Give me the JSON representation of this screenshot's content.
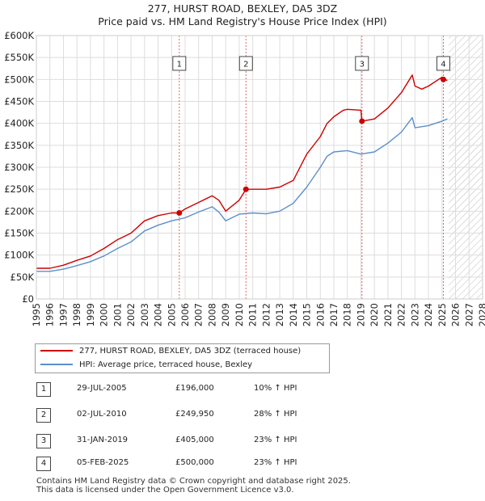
{
  "title": {
    "line1": "277, HURST ROAD, BEXLEY, DA5 3DZ",
    "line2": "Price paid vs. HM Land Registry's House Price Index (HPI)"
  },
  "colors": {
    "price_line": "#cc0000",
    "hpi_line": "#5b8fc9",
    "marker_line": "#e06666",
    "grid": "#dddddd",
    "future_hatch": "#bbbbbb"
  },
  "chart_data": {
    "type": "line",
    "title": "277, HURST ROAD, BEXLEY, DA5 3DZ — Price paid vs. HM Land Registry's House Price Index (HPI)",
    "xlim": [
      1995,
      2028
    ],
    "ylim": [
      0,
      600000
    ],
    "grid": true,
    "x_ticks": [
      "1995",
      "1996",
      "1997",
      "1998",
      "1999",
      "2000",
      "2001",
      "2002",
      "2003",
      "2004",
      "2005",
      "2006",
      "2007",
      "2008",
      "2009",
      "2010",
      "2011",
      "2012",
      "2013",
      "2014",
      "2015",
      "2016",
      "2017",
      "2018",
      "2019",
      "2020",
      "2021",
      "2022",
      "2023",
      "2024",
      "2025",
      "2026",
      "2027",
      "2028"
    ],
    "y_ticks": [
      {
        "value": 0,
        "label": "£0"
      },
      {
        "value": 50000,
        "label": "£50K"
      },
      {
        "value": 100000,
        "label": "£100K"
      },
      {
        "value": 150000,
        "label": "£150K"
      },
      {
        "value": 200000,
        "label": "£200K"
      },
      {
        "value": 250000,
        "label": "£250K"
      },
      {
        "value": 300000,
        "label": "£300K"
      },
      {
        "value": 350000,
        "label": "£350K"
      },
      {
        "value": 400000,
        "label": "£400K"
      },
      {
        "value": 450000,
        "label": "£450K"
      },
      {
        "value": 500000,
        "label": "£500K"
      },
      {
        "value": 550000,
        "label": "£550K"
      },
      {
        "value": 600000,
        "label": "£600K"
      }
    ],
    "future_from": 2025.5,
    "series": [
      {
        "name": "277, HURST ROAD, BEXLEY, DA5 3DZ (terraced house)",
        "color": "#cc0000",
        "x": [
          1995,
          1996,
          1997,
          1998,
          1999,
          2000,
          2001,
          2002,
          2003,
          2004,
          2005,
          2005.57,
          2006,
          2007,
          2008,
          2008.5,
          2009,
          2010,
          2010.5,
          2011,
          2012,
          2013,
          2014,
          2015,
          2016,
          2016.5,
          2017,
          2017.7,
          2018,
          2019,
          2019.08,
          2020,
          2021,
          2022,
          2022.8,
          2023,
          2023.5,
          2024,
          2025,
          2025.1,
          2025.4
        ],
        "y": [
          70000,
          70000,
          77000,
          88000,
          98000,
          115000,
          135000,
          150000,
          178000,
          190000,
          196000,
          196000,
          205000,
          220000,
          235000,
          225000,
          200000,
          225000,
          249950,
          250000,
          250000,
          255000,
          270000,
          330000,
          370000,
          400000,
          415000,
          430000,
          432000,
          430000,
          405000,
          410000,
          435000,
          470000,
          510000,
          485000,
          478000,
          485000,
          505000,
          500000,
          498000
        ]
      },
      {
        "name": "HPI: Average price, terraced house, Bexley",
        "color": "#5b8fc9",
        "x": [
          1995,
          1996,
          1997,
          1998,
          1999,
          2000,
          2001,
          2002,
          2003,
          2004,
          2005,
          2006,
          2007,
          2008,
          2008.5,
          2009,
          2010,
          2011,
          2012,
          2013,
          2014,
          2015,
          2016,
          2016.5,
          2017,
          2018,
          2019,
          2020,
          2021,
          2022,
          2022.8,
          2023,
          2024,
          2025,
          2025.4
        ],
        "y": [
          63000,
          63000,
          68000,
          76000,
          85000,
          98000,
          115000,
          130000,
          155000,
          168000,
          178000,
          185000,
          198000,
          210000,
          198000,
          178000,
          193000,
          196000,
          194000,
          200000,
          218000,
          255000,
          300000,
          325000,
          335000,
          338000,
          330000,
          335000,
          355000,
          380000,
          413000,
          390000,
          395000,
          405000,
          410000
        ]
      }
    ],
    "annotations": [
      {
        "label": "1",
        "x": 2005.57,
        "y": 196000
      },
      {
        "label": "2",
        "x": 2010.5,
        "y": 249950
      },
      {
        "label": "3",
        "x": 2019.08,
        "y": 405000
      },
      {
        "label": "4",
        "x": 2025.1,
        "y": 500000
      }
    ]
  },
  "legend": {
    "items": [
      {
        "label": "277, HURST ROAD, BEXLEY, DA5 3DZ (terraced house)"
      },
      {
        "label": "HPI: Average price, terraced house, Bexley"
      }
    ]
  },
  "transactions": [
    {
      "num": "1",
      "date": "29-JUL-2005",
      "price": "£196,000",
      "hpi": "10% ↑ HPI"
    },
    {
      "num": "2",
      "date": "02-JUL-2010",
      "price": "£249,950",
      "hpi": "28% ↑ HPI"
    },
    {
      "num": "3",
      "date": "31-JAN-2019",
      "price": "£405,000",
      "hpi": "23% ↑ HPI"
    },
    {
      "num": "4",
      "date": "05-FEB-2025",
      "price": "£500,000",
      "hpi": "23% ↑ HPI"
    }
  ],
  "footer": {
    "line1": "Contains HM Land Registry data © Crown copyright and database right 2025.",
    "line2": "This data is licensed under the Open Government Licence v3.0."
  }
}
